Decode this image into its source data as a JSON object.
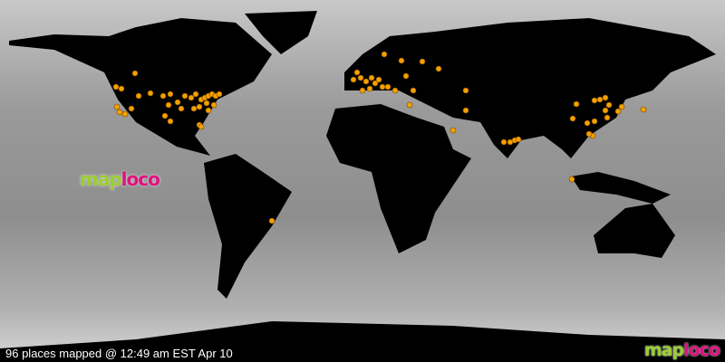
{
  "map": {
    "caption": "96 places mapped @ 12:49 am EST Apr 10",
    "marker_count": 96,
    "colors": {
      "land": "#000000",
      "marker": "#f5a000",
      "marker_stroke": "#7a4a00",
      "ocean": "#9a9a9a"
    }
  },
  "logo": {
    "part1": "map",
    "part2": "loco"
  }
}
